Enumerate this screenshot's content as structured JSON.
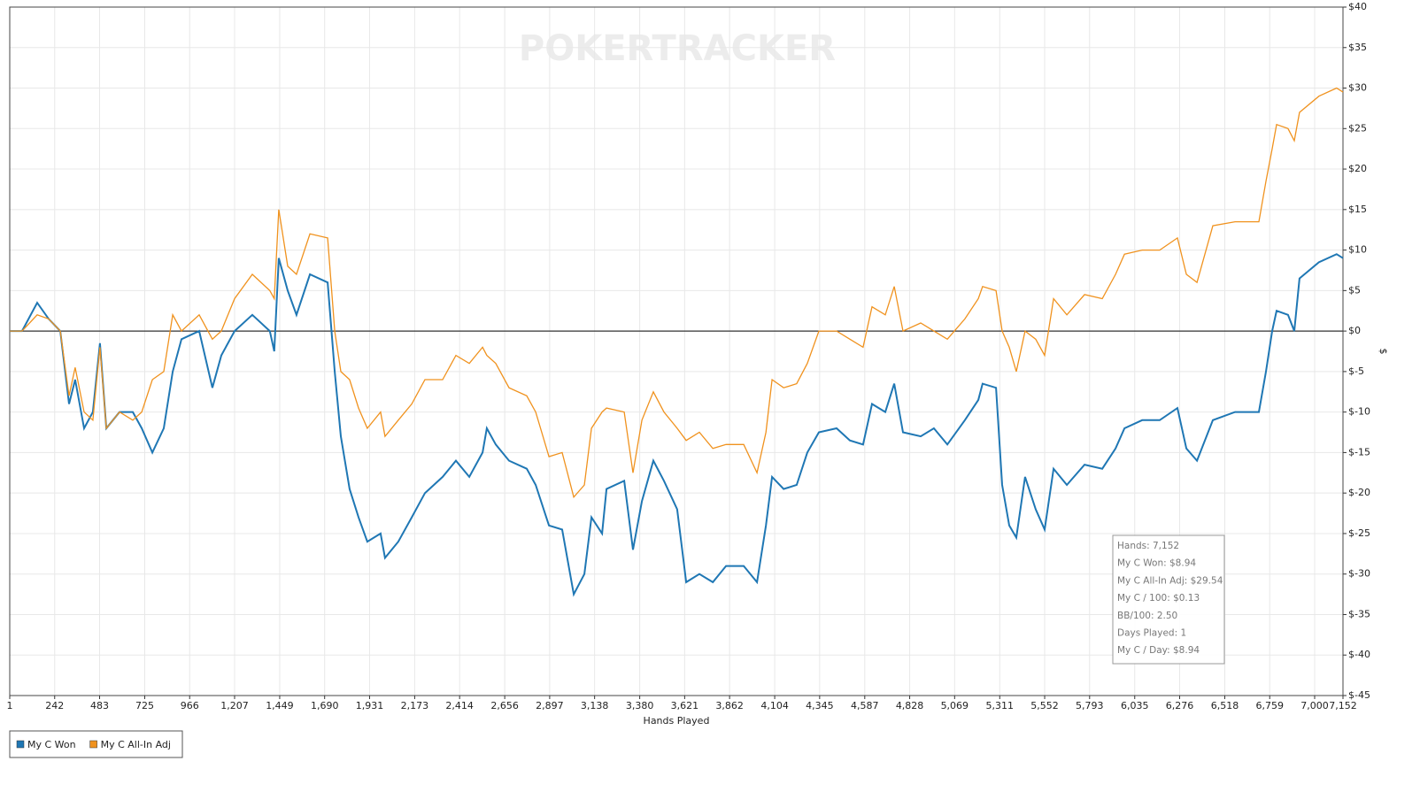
{
  "chart_data": {
    "type": "line",
    "watermark": "POKERTRACKER",
    "x_label": "Hands Played",
    "y_label": "$",
    "xlim": [
      1,
      7152
    ],
    "ylim": [
      -45,
      40
    ],
    "grid": true,
    "xticks": [
      1,
      {
        "value": 242,
        "label": "242"
      },
      483,
      725,
      966,
      {
        "value": 1207,
        "label": "1,207"
      },
      {
        "value": 1449,
        "label": "1,449"
      },
      {
        "value": 1690,
        "label": "1,690"
      },
      {
        "value": 1931,
        "label": "1,931"
      },
      {
        "value": 2173,
        "label": "2,173"
      },
      {
        "value": 2414,
        "label": "2,414"
      },
      {
        "value": 2656,
        "label": "2,656"
      },
      {
        "value": 2897,
        "label": "2,897"
      },
      {
        "value": 3138,
        "label": "3,138"
      },
      {
        "value": 3380,
        "label": "3,380"
      },
      {
        "value": 3621,
        "label": "3,621"
      },
      {
        "value": 3862,
        "label": "3,862"
      },
      {
        "value": 4104,
        "label": "4,104"
      },
      {
        "value": 4345,
        "label": "4,345"
      },
      {
        "value": 4587,
        "label": "4,587"
      },
      {
        "value": 4828,
        "label": "4,828"
      },
      {
        "value": 5069,
        "label": "5,069"
      },
      {
        "value": 5311,
        "label": "5,311"
      },
      {
        "value": 5552,
        "label": "5,552"
      },
      {
        "value": 5793,
        "label": "5,793"
      },
      {
        "value": 6035,
        "label": "6,035"
      },
      {
        "value": 6276,
        "label": "6,276"
      },
      {
        "value": 6518,
        "label": "6,518"
      },
      {
        "value": 6759,
        "label": "6,759"
      },
      {
        "value": 7000,
        "label": "7,000"
      },
      {
        "value": 7152,
        "label": "7,152"
      }
    ],
    "yticks": [
      {
        "value": 40,
        "label": "$40"
      },
      {
        "value": 35,
        "label": "$35"
      },
      {
        "value": 30,
        "label": "$30"
      },
      {
        "value": 25,
        "label": "$25"
      },
      {
        "value": 20,
        "label": "$20"
      },
      {
        "value": 15,
        "label": "$15"
      },
      {
        "value": 10,
        "label": "$10"
      },
      {
        "value": 5,
        "label": "$5"
      },
      {
        "value": 0,
        "label": "$0"
      },
      {
        "value": -5,
        "label": "$-5"
      },
      {
        "value": -10,
        "label": "$-10"
      },
      {
        "value": -15,
        "label": "$-15"
      },
      {
        "value": -20,
        "label": "$-20"
      },
      {
        "value": -25,
        "label": "$-25"
      },
      {
        "value": -30,
        "label": "$-30"
      },
      {
        "value": -35,
        "label": "$-35"
      },
      {
        "value": -40,
        "label": "$-40"
      },
      {
        "value": -45,
        "label": "$-45"
      }
    ],
    "x": [
      1,
      67,
      148,
      210,
      272,
      319,
      352,
      400,
      447,
      485,
      519,
      590,
      661,
      709,
      766,
      827,
      875,
      922,
      1017,
      1088,
      1136,
      1207,
      1302,
      1396,
      1420,
      1444,
      1492,
      1539,
      1611,
      1706,
      1744,
      1777,
      1824,
      1872,
      1919,
      1990,
      2014,
      2085,
      2157,
      2228,
      2323,
      2394,
      2466,
      2537,
      2560,
      2608,
      2679,
      2774,
      2822,
      2893,
      2964,
      3026,
      3083,
      3121,
      3178,
      3202,
      3297,
      3344,
      3392,
      3453,
      3510,
      3581,
      3629,
      3700,
      3772,
      3843,
      3938,
      4009,
      4057,
      4090,
      4152,
      4222,
      4279,
      4341,
      4436,
      4507,
      4578,
      4626,
      4697,
      4745,
      4792,
      4887,
      4958,
      5030,
      5124,
      5196,
      5219,
      5291,
      5324,
      5362,
      5400,
      5447,
      5504,
      5552,
      5600,
      5671,
      5766,
      5861,
      5932,
      5980,
      6075,
      6169,
      6264,
      6312,
      6369,
      6454,
      6573,
      6701,
      6739,
      6772,
      6796,
      6857,
      6891,
      6919,
      7023,
      7118,
      7152
    ],
    "series": [
      {
        "name": "My C Won",
        "color": "#1f77b4",
        "values": [
          0,
          0,
          3.5,
          1.5,
          0,
          -9,
          -6,
          -12,
          -10,
          -1.5,
          -12,
          -10,
          -10,
          -12,
          -15,
          -12,
          -5,
          -1,
          0,
          -7,
          -3,
          0,
          2,
          0,
          -2.5,
          9,
          5,
          2,
          7,
          6,
          -5,
          -13,
          -19.5,
          -23,
          -26,
          -25,
          -28,
          -26,
          -23,
          -20,
          -18,
          -16,
          -18,
          -15,
          -12,
          -14,
          -16,
          -17,
          -19,
          -24,
          -24.5,
          -32.5,
          -30,
          -23,
          -25,
          -19.5,
          -18.5,
          -27,
          -21,
          -16,
          -18.5,
          -22,
          -31,
          -30,
          -31,
          -29,
          -29,
          -31,
          -24,
          -18,
          -19.5,
          -19,
          -15,
          -12.5,
          -12,
          -13.5,
          -14,
          -9,
          -10,
          -6.5,
          -12.5,
          -13,
          -12,
          -14,
          -11,
          -8.5,
          -6.5,
          -7,
          -19,
          -24,
          -25.5,
          -18,
          -22,
          -24.5,
          -17,
          -19,
          -16.5,
          -17,
          -14.5,
          -12,
          -11,
          -11,
          -9.5,
          -14.5,
          -16,
          -11,
          -10,
          -10,
          -5,
          0,
          2.5,
          2,
          0,
          6.5,
          8.5,
          9.5,
          9
        ]
      },
      {
        "name": "My C All-In Adj",
        "color": "#f0921e",
        "values": [
          0,
          0,
          2,
          1.5,
          0,
          -8,
          -4.5,
          -10,
          -11,
          -2,
          -12,
          -10,
          -11,
          -10,
          -6,
          -5,
          2,
          0,
          2,
          -1,
          0,
          4,
          7,
          5,
          4,
          15,
          8,
          7,
          12,
          11.5,
          0,
          -5,
          -6,
          -9.5,
          -12,
          -10,
          -13,
          -11,
          -9,
          -6,
          -6,
          -3,
          -4,
          -2,
          -3,
          -4,
          -7,
          -8,
          -10,
          -15.5,
          -15,
          -20.5,
          -19,
          -12,
          -10,
          -9.5,
          -10,
          -17.5,
          -11,
          -7.5,
          -10,
          -12,
          -13.5,
          -12.5,
          -14.5,
          -14,
          -14,
          -17.5,
          -12.5,
          -6,
          -7,
          -6.5,
          -4,
          0,
          0,
          -1,
          -2,
          3,
          2,
          5.5,
          0,
          1,
          0,
          -1,
          1.5,
          4,
          5.5,
          5,
          0,
          -2,
          -5,
          0,
          -1,
          -3,
          4,
          2,
          4.5,
          4,
          7,
          9.5,
          10,
          10,
          11.5,
          7,
          6,
          13,
          13.5,
          13.5,
          18.5,
          22.5,
          25.5,
          25,
          23.5,
          27,
          29,
          30,
          29.5
        ]
      }
    ],
    "tooltip": [
      "Hands: 7,152",
      "My C Won: $8.94",
      "My C All-In Adj: $29.54",
      "My C / 100: $0.13",
      "BB/100: 2.50",
      "Days Played: 1",
      "My C / Day: $8.94"
    ]
  }
}
